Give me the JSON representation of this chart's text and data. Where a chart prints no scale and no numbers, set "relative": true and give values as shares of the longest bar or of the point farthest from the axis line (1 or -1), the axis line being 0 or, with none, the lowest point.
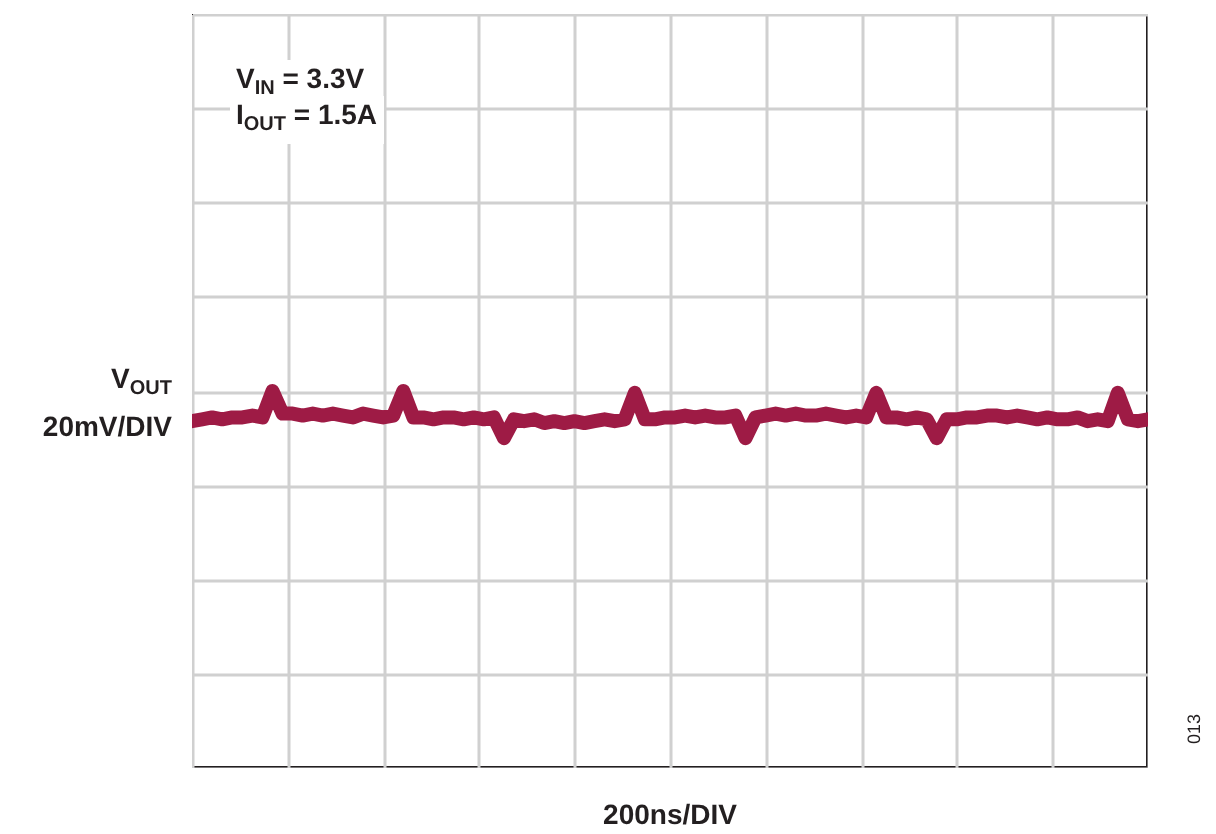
{
  "chart_data": {
    "type": "line",
    "relative": true,
    "grid": true,
    "line_style": "solid",
    "xlabel": "200ns/DIV",
    "ylabel": "V$_{OUT}$\n20mV/DIV",
    "annotations": [
      "V$_{IN}$ = 3.3V",
      "I$_{OUT}$ = 1.5A",
      "013"
    ],
    "categories": [
      null,
      null,
      null,
      null,
      null,
      null,
      null,
      null,
      null,
      null,
      null,
      null,
      null,
      null,
      null,
      null,
      null,
      null,
      null,
      null,
      null,
      null,
      null,
      null,
      null,
      null,
      null,
      null,
      null,
      null,
      null,
      null,
      null,
      null,
      null,
      null,
      null,
      null,
      null,
      null,
      null,
      null,
      null,
      null,
      null,
      null,
      null,
      null,
      null,
      null,
      null,
      null,
      null,
      null,
      null,
      null,
      null,
      null,
      null,
      null,
      null,
      null,
      null,
      null,
      null,
      null,
      null,
      null,
      null,
      null,
      null,
      null,
      null,
      null,
      null,
      null,
      null,
      null,
      null,
      null,
      null,
      null,
      null,
      null,
      null,
      null,
      null,
      null,
      null,
      null,
      null,
      null,
      null,
      null,
      null,
      null
    ],
    "series": [
      {
        "color": "#9e1b45",
        "values": [
          0.92,
          0.925,
          0.93,
          0.925,
          0.93,
          0.93,
          0.935,
          0.93,
          1.0,
          0.94,
          0.94,
          0.935,
          0.94,
          0.935,
          0.94,
          0.935,
          0.93,
          0.94,
          0.935,
          0.93,
          0.935,
          1.0,
          0.93,
          0.93,
          0.925,
          0.93,
          0.93,
          0.925,
          0.93,
          0.925,
          0.93,
          0.875,
          0.925,
          0.92,
          0.925,
          0.915,
          0.92,
          0.915,
          0.92,
          0.915,
          0.92,
          0.925,
          0.92,
          0.925,
          0.995,
          0.925,
          0.925,
          0.93,
          0.93,
          0.935,
          0.93,
          0.935,
          0.93,
          0.93,
          0.935,
          0.875,
          0.93,
          0.935,
          0.94,
          0.935,
          0.94,
          0.935,
          0.935,
          0.94,
          0.935,
          0.93,
          0.935,
          0.93,
          0.995,
          0.93,
          0.93,
          0.925,
          0.93,
          0.925,
          0.875,
          0.925,
          0.925,
          0.93,
          0.93,
          0.935,
          0.935,
          0.93,
          0.935,
          0.93,
          0.925,
          0.93,
          0.925,
          0.925,
          0.93,
          0.92,
          0.925,
          0.92,
          0.995,
          0.925,
          0.92,
          0.925
        ]
      }
    ]
  }
}
